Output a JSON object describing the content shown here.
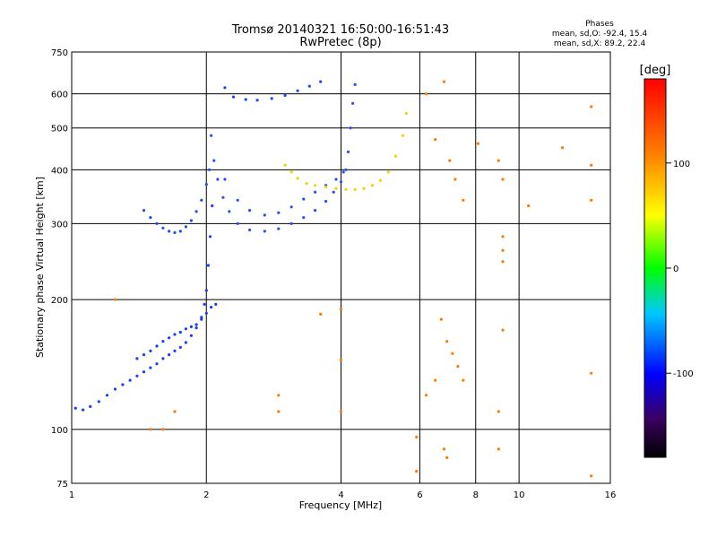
{
  "title_line1": "Tromsø 20140321 16:50:00-16:51:43",
  "title_line2": "RwPretec (8p)",
  "phases": {
    "heading": "Phases",
    "line_o": "mean, sd,O: -92.4, 15.4",
    "line_x": "mean, sd,X:  89.2, 22.4"
  },
  "colorbar": {
    "label": "[deg]",
    "ticks": [
      "100",
      "0",
      "-100"
    ],
    "tick_values": [
      100,
      0,
      -100
    ],
    "range": [
      -180,
      180
    ]
  },
  "chart_data": {
    "type": "scatter",
    "xlabel": "Frequency [MHz]",
    "ylabel": "Stationary phase Virtual Height [km]",
    "xscale": "log",
    "yscale": "log",
    "xlim": [
      1,
      16
    ],
    "ylim": [
      75,
      750
    ],
    "xticks": [
      1,
      2,
      4,
      6,
      8,
      10,
      16
    ],
    "xtick_labels": [
      "1",
      "2",
      "4",
      "6",
      "8",
      "10",
      "16"
    ],
    "yticks": [
      75,
      100,
      200,
      300,
      400,
      500,
      600,
      750
    ],
    "ytick_labels": [
      "75",
      "100",
      "200",
      "300",
      "400",
      "500",
      "600",
      "750"
    ],
    "grid": true,
    "series": [
      {
        "values": [
          [
            1.02,
            112
          ],
          [
            1.06,
            111
          ],
          [
            1.1,
            113
          ],
          [
            1.15,
            116
          ],
          [
            1.2,
            120
          ],
          [
            1.25,
            124
          ],
          [
            1.3,
            127
          ],
          [
            1.35,
            130
          ],
          [
            1.4,
            133
          ],
          [
            1.45,
            136
          ],
          [
            1.5,
            139
          ],
          [
            1.55,
            142
          ],
          [
            1.6,
            146
          ],
          [
            1.65,
            149
          ],
          [
            1.7,
            152
          ],
          [
            1.75,
            155
          ],
          [
            1.8,
            159
          ],
          [
            1.85,
            165
          ],
          [
            1.9,
            172
          ],
          [
            1.95,
            182
          ],
          [
            1.98,
            195
          ],
          [
            2.0,
            210
          ],
          [
            2.02,
            240
          ],
          [
            2.04,
            280
          ],
          [
            2.06,
            330
          ]
        ]
      },
      {
        "values": [
          [
            1.4,
            146
          ],
          [
            1.45,
            149
          ],
          [
            1.5,
            152
          ],
          [
            1.55,
            156
          ],
          [
            1.6,
            160
          ],
          [
            1.65,
            163
          ],
          [
            1.7,
            166
          ],
          [
            1.75,
            168
          ],
          [
            1.8,
            171
          ],
          [
            1.85,
            173
          ],
          [
            1.9,
            175
          ],
          [
            1.95,
            180
          ],
          [
            2.0,
            186
          ],
          [
            2.05,
            192
          ],
          [
            2.1,
            195
          ]
        ]
      },
      {
        "values": [
          [
            2.05,
            480
          ],
          [
            2.08,
            420
          ],
          [
            2.12,
            380
          ],
          [
            2.18,
            345
          ],
          [
            2.25,
            320
          ],
          [
            2.35,
            300
          ],
          [
            2.5,
            290
          ],
          [
            2.7,
            288
          ],
          [
            2.9,
            292
          ],
          [
            3.1,
            300
          ],
          [
            3.3,
            310
          ],
          [
            3.5,
            322
          ],
          [
            3.7,
            338
          ],
          [
            3.85,
            355
          ],
          [
            4.0,
            375
          ],
          [
            4.1,
            400
          ],
          [
            4.15,
            440
          ],
          [
            4.2,
            500
          ],
          [
            4.25,
            570
          ],
          [
            4.3,
            630
          ]
        ]
      },
      {
        "values": [
          [
            2.2,
            380
          ],
          [
            2.35,
            340
          ],
          [
            2.5,
            322
          ],
          [
            2.7,
            314
          ],
          [
            2.9,
            318
          ],
          [
            3.1,
            328
          ],
          [
            3.3,
            342
          ],
          [
            3.5,
            355
          ],
          [
            3.7,
            368
          ],
          [
            3.9,
            380
          ],
          [
            4.05,
            395
          ]
        ]
      },
      {
        "values": [
          [
            2.2,
            620
          ],
          [
            2.3,
            590
          ],
          [
            2.45,
            582
          ],
          [
            2.6,
            580
          ],
          [
            2.8,
            585
          ],
          [
            3.0,
            595
          ],
          [
            3.2,
            610
          ],
          [
            3.4,
            625
          ],
          [
            3.6,
            640
          ]
        ]
      },
      {
        "values": [
          [
            1.45,
            322
          ],
          [
            1.5,
            310
          ],
          [
            1.55,
            300
          ],
          [
            1.6,
            293
          ],
          [
            1.65,
            288
          ],
          [
            1.7,
            286
          ],
          [
            1.75,
            288
          ],
          [
            1.8,
            295
          ],
          [
            1.85,
            305
          ],
          [
            1.9,
            320
          ],
          [
            1.95,
            340
          ],
          [
            2.0,
            370
          ],
          [
            2.03,
            400
          ]
        ]
      },
      {
        "values": [
          [
            3.0,
            410
          ],
          [
            3.1,
            395
          ],
          [
            3.2,
            382
          ],
          [
            3.35,
            372
          ],
          [
            3.5,
            368
          ],
          [
            3.7,
            365
          ],
          [
            3.9,
            362
          ],
          [
            4.1,
            360
          ],
          [
            4.3,
            360
          ],
          [
            4.5,
            362
          ],
          [
            4.7,
            368
          ],
          [
            4.9,
            378
          ],
          [
            5.1,
            395
          ],
          [
            5.3,
            430
          ],
          [
            5.5,
            480
          ],
          [
            5.6,
            540
          ]
        ]
      },
      {
        "values": [
          [
            6.2,
            600
          ],
          [
            6.5,
            470
          ],
          [
            6.8,
            640
          ],
          [
            7.0,
            420
          ],
          [
            7.2,
            380
          ],
          [
            7.5,
            340
          ],
          [
            8.1,
            460
          ],
          [
            9.0,
            420
          ],
          [
            9.2,
            380
          ],
          [
            10.5,
            330
          ],
          [
            12.5,
            450
          ],
          [
            14.5,
            560
          ],
          [
            14.5,
            410
          ],
          [
            14.5,
            340
          ],
          [
            14.5,
            135
          ],
          [
            14.5,
            78
          ],
          [
            6.7,
            180
          ],
          [
            6.9,
            160
          ],
          [
            7.1,
            150
          ],
          [
            7.3,
            140
          ],
          [
            7.5,
            130
          ],
          [
            6.5,
            130
          ],
          [
            6.8,
            90
          ],
          [
            6.9,
            86
          ],
          [
            6.2,
            120
          ],
          [
            5.9,
            96
          ],
          [
            5.9,
            80
          ],
          [
            9.0,
            90
          ],
          [
            9.0,
            110
          ],
          [
            9.2,
            170
          ],
          [
            9.2,
            245
          ],
          [
            9.2,
            260
          ],
          [
            9.2,
            280
          ],
          [
            4.0,
            145
          ],
          [
            4.0,
            190
          ],
          [
            4.0,
            110
          ],
          [
            2.9,
            120
          ],
          [
            2.9,
            110
          ],
          [
            3.6,
            185
          ],
          [
            1.6,
            100
          ],
          [
            1.7,
            110
          ],
          [
            1.5,
            100
          ],
          [
            1.25,
            200
          ]
        ]
      }
    ]
  }
}
